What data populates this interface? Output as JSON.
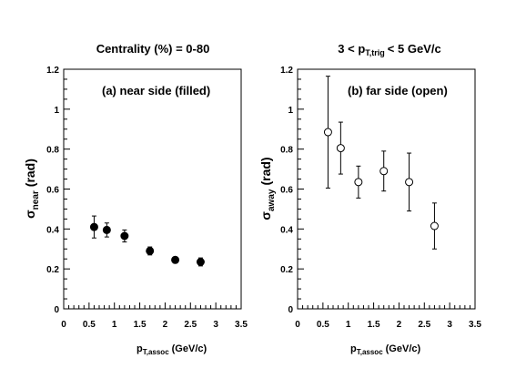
{
  "chart_data": [
    {
      "type": "scatter",
      "title": "Centrality (%) = 0-80",
      "annotation": "(a) near side  (filled)",
      "ylabel_main": "σ",
      "ylabel_sub": "near",
      "ylabel_unit": "(rad)",
      "xlabel_main": "p",
      "xlabel_sub": "T,assoc",
      "xlabel_unit": "(GeV/c)",
      "xlim": [
        0,
        3.5
      ],
      "ylim": [
        0,
        1.2
      ],
      "xticks": [
        "0",
        "0.5",
        "1",
        "1.5",
        "2",
        "2.5",
        "3",
        "3.5"
      ],
      "yticks": [
        "0",
        "0.2",
        "0.4",
        "0.6",
        "0.8",
        "1",
        "1.2"
      ],
      "marker": "filled-circle",
      "grid": false,
      "series": [
        {
          "x": [
            0.6,
            0.85,
            1.2,
            1.7,
            2.2,
            2.7
          ],
          "y": [
            0.41,
            0.395,
            0.365,
            0.29,
            0.245,
            0.235
          ],
          "yerr": [
            0.055,
            0.035,
            0.03,
            0.02,
            0.015,
            0.02
          ]
        }
      ]
    },
    {
      "type": "scatter",
      "title": "3 < p",
      "title_sub": "T,trig",
      "title_tail": "< 5 GeV/c",
      "annotation": "(b)  far side  (open)",
      "ylabel_main": "σ",
      "ylabel_sub": "away",
      "ylabel_unit": "(rad)",
      "xlabel_main": "p",
      "xlabel_sub": "T,assoc",
      "xlabel_unit": "(GeV/c)",
      "xlim": [
        0,
        3.5
      ],
      "ylim": [
        0,
        1.2
      ],
      "xticks": [
        "0",
        "0.5",
        "1",
        "1.5",
        "2",
        "2.5",
        "3",
        "3.5"
      ],
      "yticks": [
        "0",
        "0.2",
        "0.4",
        "0.6",
        "0.8",
        "1",
        "1.2"
      ],
      "marker": "open-circle",
      "grid": false,
      "series": [
        {
          "x": [
            0.6,
            0.85,
            1.2,
            1.7,
            2.2,
            2.7
          ],
          "y": [
            0.885,
            0.805,
            0.635,
            0.69,
            0.635,
            0.415
          ],
          "yerr": [
            0.28,
            0.13,
            0.08,
            0.1,
            0.145,
            0.115
          ]
        }
      ]
    }
  ]
}
